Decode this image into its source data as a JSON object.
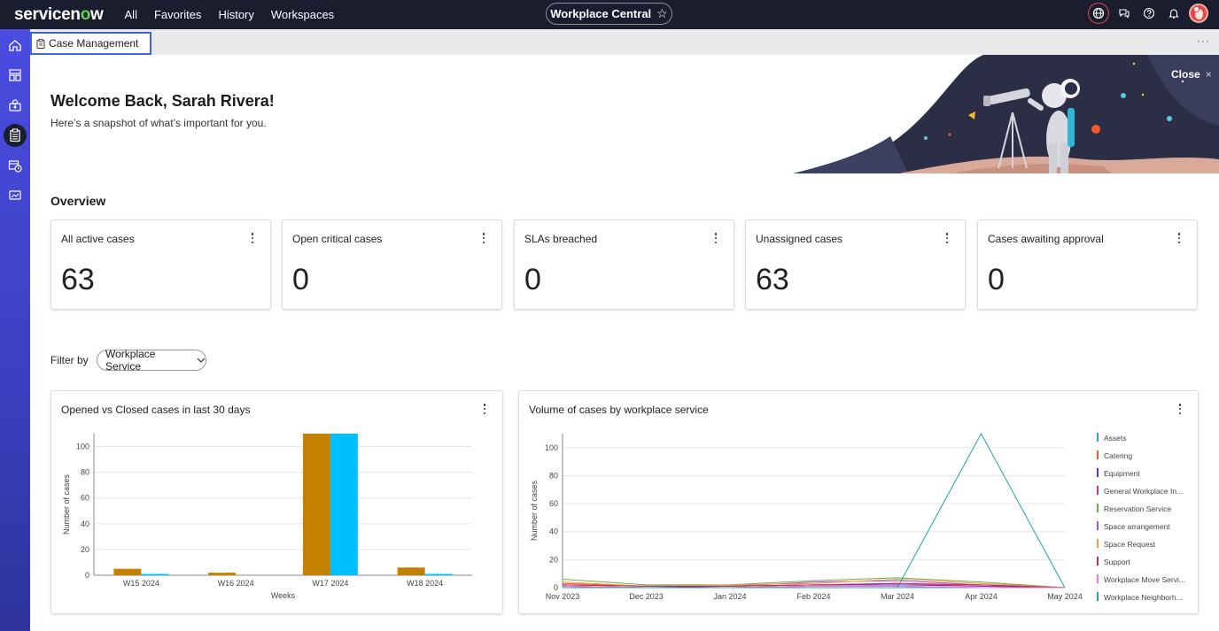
{
  "header": {
    "logo": "servicenow",
    "nav": [
      "All",
      "Favorites",
      "History",
      "Workspaces"
    ],
    "workspace_title": "Workplace Central",
    "workspace_star": "☆",
    "icons": [
      "globe-icon",
      "chat-icon",
      "help-icon",
      "bell-icon",
      "avatar"
    ]
  },
  "sidebar": {
    "items": [
      "home-icon",
      "layout-icon",
      "gear-cluster-icon",
      "clipboard-icon",
      "calendar-clock-icon",
      "chart-board-icon"
    ],
    "active_index": 3
  },
  "tab": {
    "label": "Case Management",
    "more": "···"
  },
  "banner": {
    "close_label": "Close",
    "close_icon": "×",
    "welcome": "Welcome Back, Sarah Rivera!",
    "subtitle": "Here’s a snapshot of what’s important for you."
  },
  "overview": {
    "title": "Overview",
    "cards": [
      {
        "title": "All active cases",
        "value": "63"
      },
      {
        "title": "Open critical cases",
        "value": "0"
      },
      {
        "title": "SLAs breached",
        "value": "0"
      },
      {
        "title": "Unassigned cases",
        "value": "63"
      },
      {
        "title": "Cases awaiting approval",
        "value": "0"
      }
    ]
  },
  "filter": {
    "label": "Filter by",
    "value": "Workplace Service"
  },
  "charts": {
    "left_title": "Opened vs Closed cases in last 30 days",
    "right_title": "Volume of cases by workplace service"
  },
  "colors": {
    "opened": "#c48100",
    "closed": "#00bfff",
    "accent": "#3f65d4"
  },
  "chart_data": [
    {
      "type": "bar",
      "title": "Opened vs Closed cases in last 30 days",
      "xlabel": "Weeks",
      "ylabel": "Number of cases",
      "ylim": [
        0,
        110
      ],
      "yticks": [
        0,
        20,
        40,
        60,
        80,
        100
      ],
      "grid": true,
      "categories": [
        "W15 2024",
        "W16 2024",
        "W17 2024",
        "W18 2024"
      ],
      "series": [
        {
          "values": [
            5,
            2,
            110,
            6
          ],
          "color": "#c48100"
        },
        {
          "values": [
            1,
            0,
            110,
            1
          ],
          "color": "#00bfff"
        }
      ]
    },
    {
      "type": "line",
      "title": "Volume of cases by workplace service",
      "xlabel": "",
      "ylabel": "Number of cases",
      "ylim": [
        0,
        110
      ],
      "yticks": [
        0,
        20,
        40,
        60,
        80,
        100
      ],
      "grid": true,
      "legend": "right",
      "categories": [
        "Nov 2023",
        "Dec 2023",
        "Jan 2024",
        "Feb 2024",
        "Mar 2024",
        "Apr 2024",
        "May 2024"
      ],
      "series": [
        {
          "name": "Assets",
          "color": "#23a8d6",
          "values": [
            0,
            0,
            0,
            0,
            0,
            0,
            0
          ]
        },
        {
          "name": "Catering",
          "color": "#f2592a",
          "values": [
            3,
            1,
            1,
            2,
            3,
            1,
            0
          ]
        },
        {
          "name": "Equipment",
          "color": "#6a2bd9",
          "values": [
            1,
            0,
            1,
            2,
            2,
            1,
            0
          ]
        },
        {
          "name": "General Workplace In...",
          "color": "#d12f8c",
          "values": [
            1,
            0,
            0,
            1,
            1,
            0,
            0
          ]
        },
        {
          "name": "Reservation Service",
          "color": "#6cab4b",
          "values": [
            6,
            2,
            2,
            5,
            7,
            4,
            0
          ]
        },
        {
          "name": "Space arrangement",
          "color": "#b54cd8",
          "values": [
            2,
            1,
            1,
            4,
            5,
            2,
            0
          ]
        },
        {
          "name": "Space Request",
          "color": "#e6a12e",
          "values": [
            4,
            1,
            2,
            3,
            6,
            3,
            0
          ]
        },
        {
          "name": "Support",
          "color": "#d1245a",
          "values": [
            2,
            1,
            1,
            2,
            3,
            2,
            0
          ]
        },
        {
          "name": "Workplace Move Servi...",
          "color": "#e779d5",
          "values": [
            1,
            0,
            0,
            1,
            1,
            0,
            0
          ]
        },
        {
          "name": "Workplace Neighborh...",
          "color": "#1fa2a8",
          "values": [
            0,
            0,
            0,
            0,
            0,
            110,
            0
          ]
        }
      ]
    }
  ]
}
